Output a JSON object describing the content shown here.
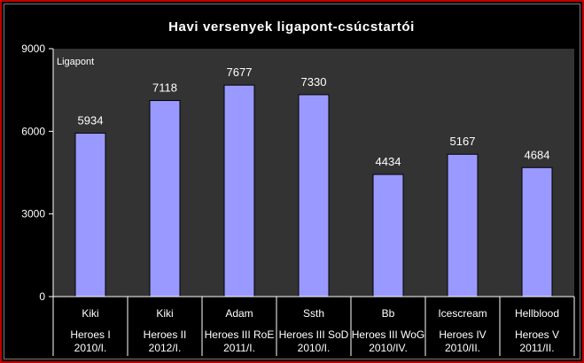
{
  "chart_data": {
    "type": "bar",
    "title": "Havi versenyek ligapont-csúcstartói",
    "ylabel": "Ligapont",
    "xlabel": "",
    "ylim": [
      0,
      9000
    ],
    "yticks": [
      0,
      3000,
      6000,
      9000
    ],
    "grid": false,
    "legend": "none",
    "categories": [
      {
        "player": "Kiki",
        "game": "Heroes I",
        "period": "2010/I."
      },
      {
        "player": "Kiki",
        "game": "Heroes II",
        "period": "2012/I."
      },
      {
        "player": "Adam",
        "game": "Heroes III RoE",
        "period": "2011/I."
      },
      {
        "player": "Ssth",
        "game": "Heroes III SoD",
        "period": "2010/I."
      },
      {
        "player": "Bb",
        "game": "Heroes III WoG",
        "period": "2010/IV."
      },
      {
        "player": "Icescream",
        "game": "Heroes IV",
        "period": "2010/II."
      },
      {
        "player": "Hellblood",
        "game": "Heroes V",
        "period": "2011/II."
      }
    ],
    "values": [
      5934,
      7118,
      7677,
      7330,
      4434,
      5167,
      4684
    ],
    "colors": {
      "bar": "#9999ff",
      "bar_stroke": "#000000",
      "plot_background": "#333333",
      "background": "#000000",
      "axis": "#ffffff",
      "frame": "#c00000"
    }
  }
}
